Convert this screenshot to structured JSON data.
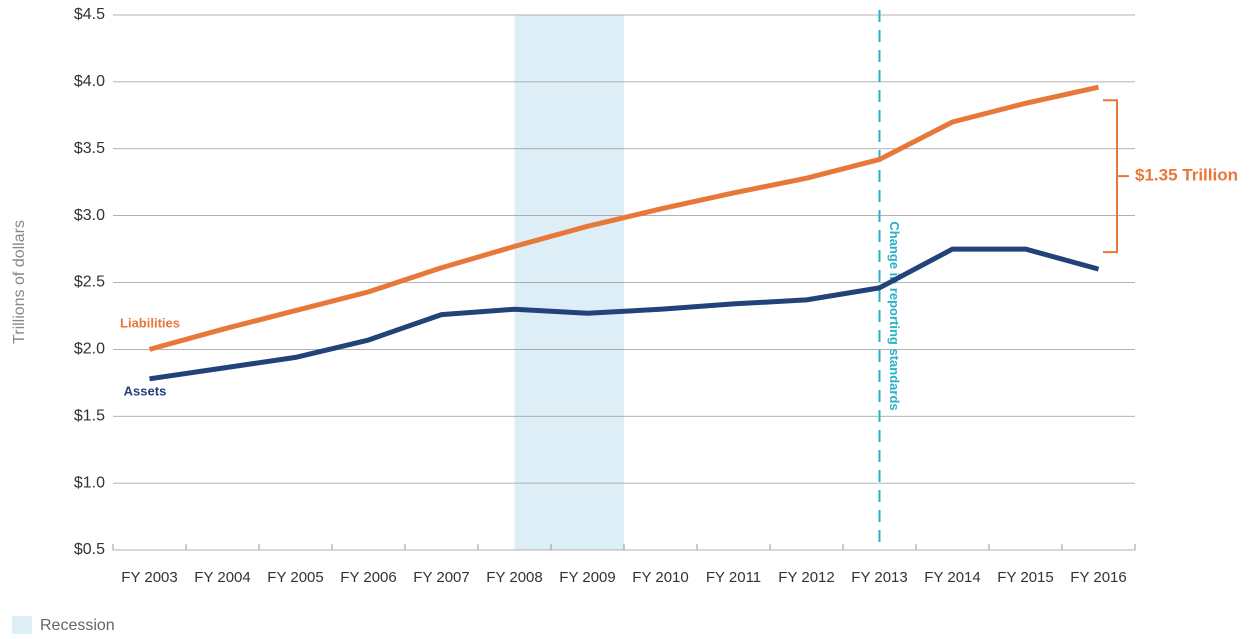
{
  "chart_data": {
    "type": "line",
    "y_label": "Trillions of dollars",
    "categories": [
      "FY 2003",
      "FY 2004",
      "FY 2005",
      "FY 2006",
      "FY 2007",
      "FY 2008",
      "FY 2009",
      "FY 2010",
      "FY 2011",
      "FY 2012",
      "FY 2013",
      "FY 2014",
      "FY 2015",
      "FY 2016"
    ],
    "series": [
      {
        "name": "Liabilities",
        "color": "#e8773a",
        "values": [
          2.0,
          2.15,
          2.29,
          2.43,
          2.61,
          2.77,
          2.92,
          3.05,
          3.17,
          3.28,
          3.42,
          3.7,
          3.84,
          3.96
        ]
      },
      {
        "name": "Assets",
        "color": "#22427a",
        "values": [
          1.78,
          1.86,
          1.94,
          2.07,
          2.26,
          2.3,
          2.27,
          2.3,
          2.34,
          2.37,
          2.46,
          2.75,
          2.75,
          2.6
        ]
      }
    ],
    "ylim": [
      0.5,
      4.5
    ],
    "yticks": [
      {
        "value": 0.5,
        "label": "$0.5"
      },
      {
        "value": 1.0,
        "label": "$1.0"
      },
      {
        "value": 1.5,
        "label": "$1.5"
      },
      {
        "value": 2.0,
        "label": "$2.0"
      },
      {
        "value": 2.5,
        "label": "$2.5"
      },
      {
        "value": 3.0,
        "label": "$3.0"
      },
      {
        "value": 3.5,
        "label": "$3.5"
      },
      {
        "value": 4.0,
        "label": "$4.0"
      },
      {
        "value": 4.5,
        "label": "$4.5"
      }
    ],
    "grid": true,
    "shaded_region": {
      "label": "Recession",
      "color": "#ddeef6",
      "from": 5.5,
      "to": 7
    },
    "vline": {
      "category_index": 10,
      "label": "Change in reporting standards",
      "color": "#2ab0c8"
    },
    "gap_annotation": {
      "label": "$1.35 Trillion",
      "color": "#e8773a"
    }
  }
}
